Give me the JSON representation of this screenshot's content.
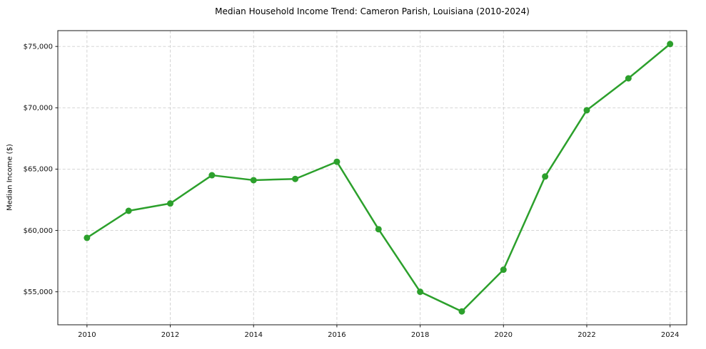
{
  "chart_data": {
    "type": "line",
    "title": "Median Household Income Trend: Cameron Parish, Louisiana (2010-2024)",
    "ylabel": "Median Income ($)",
    "xlabel": "",
    "series_name": "Median household income",
    "x": [
      2010,
      2011,
      2012,
      2013,
      2014,
      2015,
      2016,
      2017,
      2018,
      2019,
      2020,
      2021,
      2022,
      2023,
      2024
    ],
    "values": [
      59400,
      61600,
      62200,
      64500,
      64100,
      64200,
      65600,
      60100,
      55000,
      53400,
      56800,
      64400,
      69800,
      72400,
      75200
    ],
    "xticks": [
      2010,
      2012,
      2014,
      2016,
      2018,
      2020,
      2022,
      2024
    ],
    "xtick_labels": [
      "2010",
      "2012",
      "2014",
      "2016",
      "2018",
      "2020",
      "2022",
      "2024"
    ],
    "ytick_values": [
      55000,
      60000,
      65000,
      70000,
      75000
    ],
    "ytick_labels": [
      "$55,000",
      "$60,000",
      "$65,000",
      "$70,000",
      "$75,000"
    ],
    "xlim": [
      2009.3,
      2024.4
    ],
    "ylim": [
      52310,
      76290
    ],
    "grid": "dashed",
    "legend": "none",
    "line_color": "#2ca02c",
    "marker_color": "#2ca02c",
    "grid_color": "#cfcfcf",
    "spine_color": "#1a1a1a",
    "tick_label_color": "#111111"
  }
}
